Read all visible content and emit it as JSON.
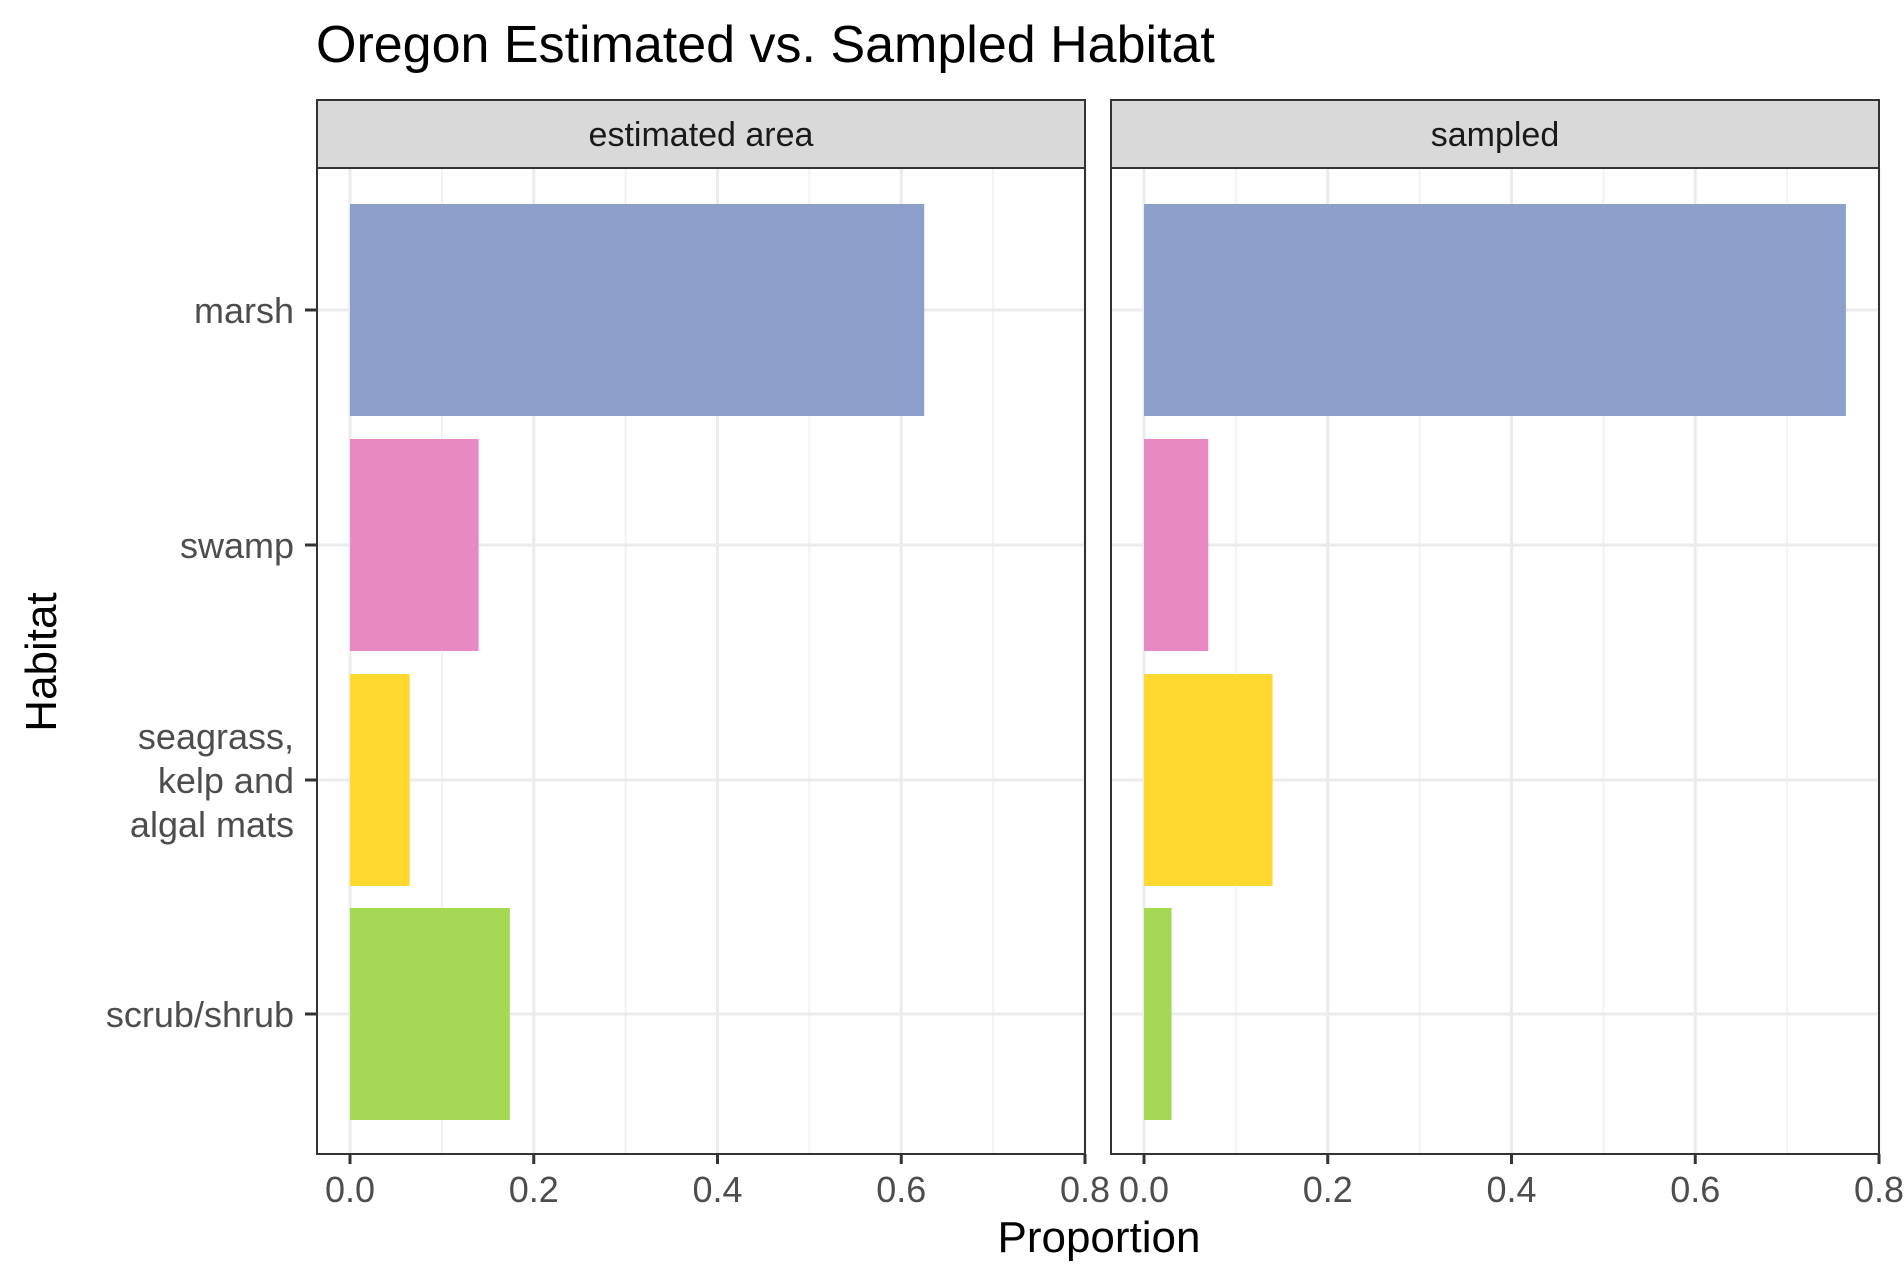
{
  "chart_data": {
    "type": "bar",
    "orientation": "horizontal",
    "title": "Oregon Estimated vs. Sampled Habitat",
    "xlabel": "Proportion",
    "ylabel": "Habitat",
    "xlim": [
      0,
      0.8
    ],
    "x_ticks": [
      "0.0",
      "0.2",
      "0.4",
      "0.6",
      "0.8"
    ],
    "grid": true,
    "legend": "none",
    "categories": [
      "marsh",
      "swamp",
      "seagrass,\nkelp and\nalgal mats",
      "scrub/shrub"
    ],
    "colors": [
      "#8DA0CB",
      "#E78AC3",
      "#FFD92F",
      "#A6D854"
    ],
    "panels": [
      {
        "name": "estimated area",
        "values": [
          0.625,
          0.14,
          0.065,
          0.174
        ]
      },
      {
        "name": "sampled",
        "values": [
          0.764,
          0.07,
          0.14,
          0.03
        ]
      }
    ]
  }
}
